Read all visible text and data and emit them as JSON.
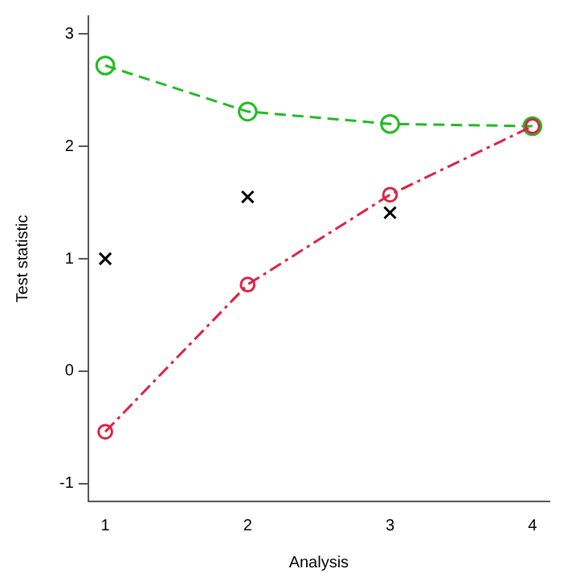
{
  "chart_data": {
    "type": "line",
    "xlabel": "Analysis",
    "ylabel": "Test statistic",
    "xlim": [
      0.88,
      4.12
    ],
    "ylim": [
      -1.16,
      3.16
    ],
    "xticks": [
      1,
      2,
      3,
      4
    ],
    "yticks": [
      -1,
      0,
      1,
      2,
      3
    ],
    "grid": false,
    "series": [
      {
        "type": "line",
        "color": "#22bb22",
        "x": [
          1,
          2,
          3,
          4
        ],
        "values": [
          2.72,
          2.31,
          2.2,
          2.18
        ],
        "marker": "circle",
        "line_style": "dashed"
      },
      {
        "type": "line",
        "color": "#dd2244",
        "x": [
          1,
          2,
          3,
          4
        ],
        "values": [
          -0.54,
          0.77,
          1.57,
          2.18
        ],
        "marker": "circle",
        "line_style": "dashdot"
      },
      {
        "type": "scatter",
        "color": "#000000",
        "x": [
          1,
          2,
          3
        ],
        "values": [
          1.0,
          1.55,
          1.41
        ],
        "marker": "cross"
      }
    ]
  }
}
